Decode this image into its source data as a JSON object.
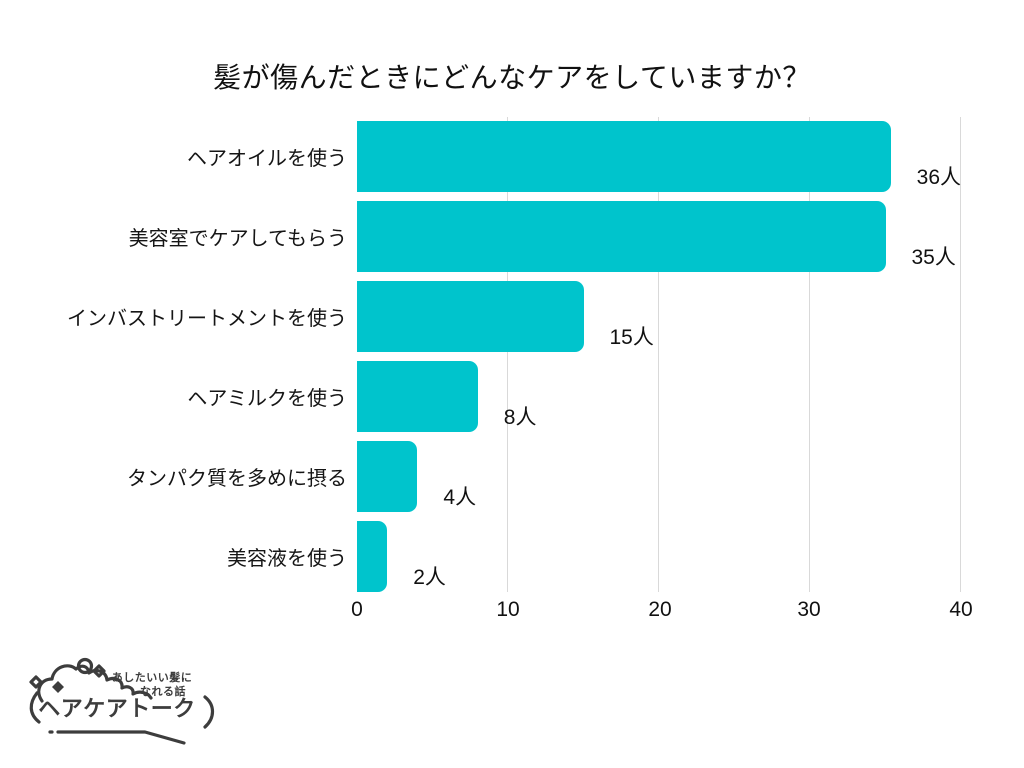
{
  "title": "髪が傷んだときにどんなケアをしていますか？",
  "chart_data": {
    "type": "bar",
    "orientation": "horizontal",
    "title": "髪が傷んだときにどんなケアをしていますか？",
    "categories": [
      "ヘアオイルを使う",
      "美容室でケアしてもらう",
      "インバストリートメントを使う",
      "ヘアミルクを使う",
      "タンパク質を多めに摂る",
      "美容液を使う"
    ],
    "values": [
      36,
      35,
      15,
      8,
      4,
      2
    ],
    "value_labels": [
      "36人",
      "35人",
      "15人",
      "8人",
      "4人",
      "2人"
    ],
    "unit": "人",
    "xlim": [
      0,
      40
    ],
    "x_ticks": [
      0,
      10,
      20,
      30,
      40
    ],
    "x_tick_labels": [
      "0",
      "10",
      "20",
      "30",
      "40"
    ],
    "xlabel": "",
    "ylabel": "",
    "legend": "none",
    "grid": "vertical gridlines at 10, 20, 30, 40 only",
    "bar_color": "#00C4CC",
    "gridline_color": "#D9D9D9",
    "background_color": "#FFFFFF",
    "text_color": "#111111"
  },
  "logo": {
    "tagline_line1": "あしたいい髪に",
    "tagline_line2": "なれる話",
    "name": "ヘアケアトーク",
    "color": "#3D3D3D"
  }
}
